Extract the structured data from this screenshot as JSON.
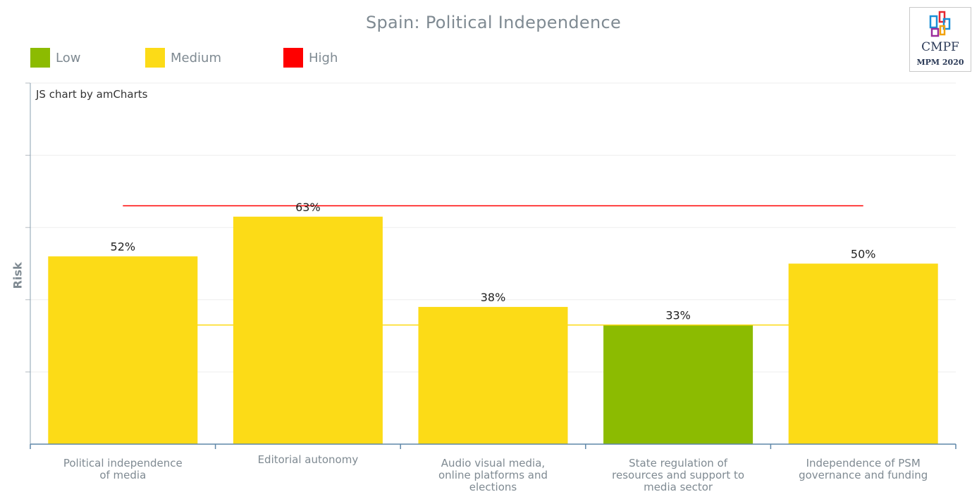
{
  "title": "Spain: Political Independence",
  "credit": "JS chart by amCharts",
  "logo": {
    "brand": "CMPF",
    "edition": "MPM 2020"
  },
  "legend": [
    {
      "label": "Low",
      "color": "#8cbb01"
    },
    {
      "label": "Medium",
      "color": "#fcdb17"
    },
    {
      "label": "High",
      "color": "#ff0000"
    }
  ],
  "chart_data": {
    "type": "bar",
    "ylabel": "Risk",
    "xlabel": "",
    "ylim": [
      0,
      100
    ],
    "categories": [
      [
        "Political independence",
        "of media"
      ],
      [
        "Editorial autonomy"
      ],
      [
        "Audio visual media,",
        "online platforms and",
        "elections"
      ],
      [
        "State regulation of",
        "resources and support to",
        "media sector"
      ],
      [
        "Independence of PSM",
        "governance and funding"
      ]
    ],
    "values": [
      52,
      63,
      38,
      33,
      50
    ],
    "value_labels": [
      "52%",
      "63%",
      "38%",
      "33%",
      "50%"
    ],
    "bar_colors": [
      "#fcdb17",
      "#fcdb17",
      "#fcdb17",
      "#8cbb01",
      "#fcdb17"
    ],
    "threshold_lines": [
      {
        "value": 66,
        "color": "#ff0000"
      },
      {
        "value": 33,
        "color": "#fcdb17"
      }
    ],
    "grid": true,
    "legend_position": "top-left"
  }
}
